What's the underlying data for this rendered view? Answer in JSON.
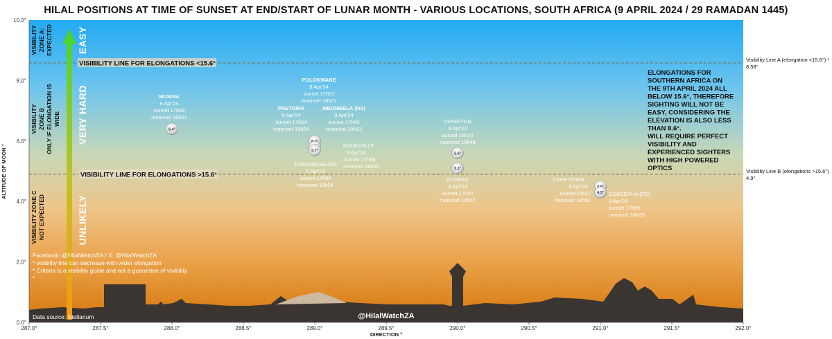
{
  "chart_data": {
    "type": "scatter",
    "title": "HILAL POSITIONS AT TIME OF SUNSET AT END/START OF LUNAR MONTH - VARIOUS LOCATIONS, SOUTH AFRICA (9 APRIL 2024 / 29 RAMADAN 1445)",
    "xlabel": "DIRECTION °",
    "ylabel": "ALTITUDE OF MOON °",
    "xlim": [
      287.0,
      292.0
    ],
    "ylim": [
      0.0,
      10.0
    ],
    "x_ticks": [
      "287.0°",
      "287.5°",
      "288.0°",
      "288.5°",
      "289.0°",
      "289.5°",
      "290.0°",
      "290.5°",
      "291.0°",
      "291.5°",
      "292.0°"
    ],
    "y_ticks": [
      "0.0°",
      "2.0°",
      "4.0°",
      "6.0°",
      "8.0°",
      "10.0°"
    ],
    "points": [
      {
        "x": 288.0,
        "y": 6.4,
        "label": "6.4°"
      },
      {
        "x": 289.0,
        "y": 6.0,
        "label": "6.0°"
      },
      {
        "x": 289.0,
        "y": 5.8,
        "label": "5.8°"
      },
      {
        "x": 289.0,
        "y": 5.7,
        "label": "5.7°"
      },
      {
        "x": 290.0,
        "y": 5.6,
        "label": "5.6°"
      },
      {
        "x": 290.0,
        "y": 5.1,
        "label": "5.1°"
      },
      {
        "x": 291.0,
        "y": 4.5,
        "label": "4.5°"
      },
      {
        "x": 291.0,
        "y": 4.3,
        "label": "4.3°"
      }
    ],
    "locations": [
      {
        "name": "MUSINA",
        "lines": [
          "9 Apr'24",
          "sunset 17h49",
          "moonset 18h21"
        ]
      },
      {
        "name": "POLOKWANE",
        "lines": [
          "9 Apr'24",
          "sunset 17h51",
          "moonset 18h21"
        ]
      },
      {
        "name": "PRETORIA",
        "lines": [
          "9 Apr'24",
          "sunset 17h54",
          "moonset 18h24"
        ]
      },
      {
        "name": "MBOMBELA (NS)",
        "lines": [
          "9 Apr'24",
          "sunset 17h43",
          "moonset 18h13"
        ]
      },
      {
        "name": "AZAADVILLE",
        "lines": [
          "9 Apr'24",
          "sunset 17h56",
          "moonset 18h25"
        ]
      },
      {
        "name": "JOHANNESBURG",
        "lines": [
          "9 Apr'24",
          "sunset 17h55",
          "moonset 18h24"
        ]
      },
      {
        "name": "UPINGTON",
        "lines": [
          "9 Apr'24",
          "sunset 18h20",
          "moonset 19h49"
        ]
      },
      {
        "name": "DURBAN",
        "lines": [
          "9 Apr'24",
          "sunset 17h40",
          "moonset 18h07"
        ]
      },
      {
        "name": "CAPE TOWN",
        "lines": [
          "9 Apr'24",
          "sunset 18h27",
          "moonset 18h52"
        ]
      },
      {
        "name": "GQEBERHA (PE)",
        "lines": [
          "9 Apr'24",
          "sunset 17h59",
          "moonset 18h23"
        ]
      }
    ],
    "reference_lines": [
      {
        "y": 8.58,
        "label": "VISIBILITY LINE FOR ELONGATIONS <15.6°",
        "side_label": "Visibility Line A (elongation <15.6°) *",
        "side_value": "8.58°"
      },
      {
        "y": 4.9,
        "label": "VISIBILITY LINE FOR ELONGATIONS >15.6°",
        "side_label": "Visibility Line B (elongations >15.6°)",
        "side_value": "4.9°"
      }
    ],
    "zones": [
      {
        "y_from": 8.58,
        "y_to": 10.0,
        "lines": [
          "VISIBILITY",
          "ZONE A:",
          "EXPECTED"
        ],
        "difficulty": "EASY"
      },
      {
        "y_from": 4.9,
        "y_to": 8.58,
        "lines": [
          "VISIBILITY",
          "ZONE B",
          "ONLY IF ELONGATION IS",
          "WIDE"
        ],
        "difficulty": "VERY HARD"
      },
      {
        "y_from": 0.0,
        "y_to": 4.9,
        "lines": [
          "VISIBILITY ZONE C",
          "NOT EXPECTED"
        ],
        "difficulty": "UNLIKELY"
      }
    ],
    "note_lines": [
      "ELONGATIONS FOR",
      "SOUTHERN AFRICA  ON",
      "THE 9TH APRIL 2024 ALL",
      "BELOW 15.6°, THEREFORE",
      "SIGHTING WILL NOT BE",
      "EASY, CONSIDERING THE",
      "ELEVATION IS ALSO LESS",
      "THAN 8.6°.",
      "WILL REQUIRE PERFECT",
      "VISIBILITY AND",
      "EXPERIENCED SIGHTERS",
      "WITH HIGH POWERED",
      "OPTICS"
    ],
    "footnotes": [
      "Facebook: @HilalWatchSA / X: @HilalWatchZA",
      "*  visibility line can decrease with wider elongation",
      "*  Criteria is a visibility guide and not a guarantee of visibility",
      "*"
    ],
    "data_source": "Data source: Stellarium",
    "brand": "@HilalWatchZA",
    "colors": {
      "sky_top": "#22aaf2",
      "sky_mid": "#c7d6b0",
      "sky_low": "#f0b060",
      "sky_bottom": "#d2780a",
      "ground": "#3a3530",
      "moon": "#e2e2e2",
      "arrow_top": "#4dd42a",
      "arrow_bottom": "#f39a10"
    }
  }
}
